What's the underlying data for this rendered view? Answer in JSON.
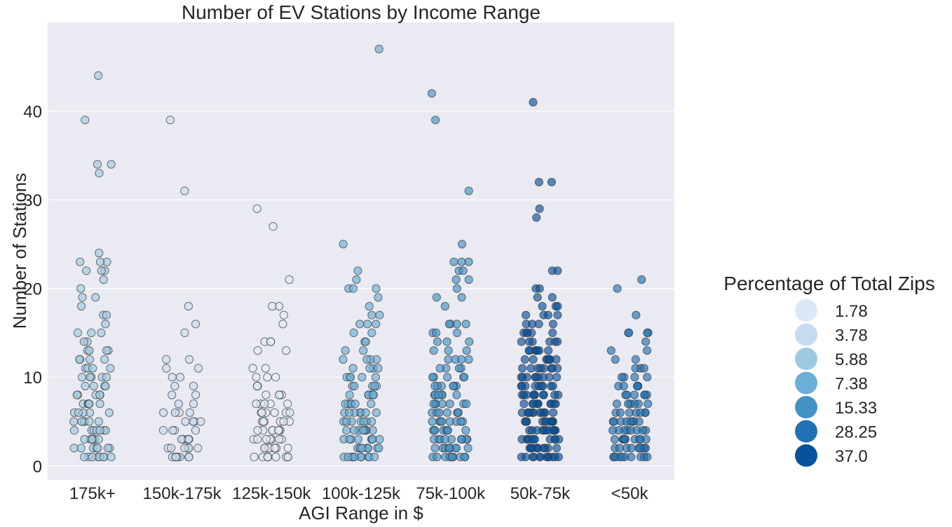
{
  "chart_data": {
    "type": "scatter",
    "title": "Number of EV Stations by Income Range",
    "xlabel": "AGI Range in $",
    "ylabel": "Number of Stations",
    "categories": [
      "175k+",
      "150k-175k",
      "125k-150k",
      "100k-125k",
      "75k-100k",
      "50k-75k",
      "<50k"
    ],
    "ylim": [
      -1.6,
      50
    ],
    "yticks": [
      0,
      10,
      20,
      30,
      40
    ],
    "grid": true,
    "legend": {
      "title": "Percentage of Total Zips",
      "placement": "right",
      "entries": [
        "1.78",
        "3.78",
        "5.88",
        "7.38",
        "15.33",
        "28.25",
        "37.0"
      ],
      "colors": [
        "#dbe9f6",
        "#c6dbef",
        "#9ecae1",
        "#6baed6",
        "#4292c6",
        "#2171b5",
        "#08519c"
      ]
    },
    "series": [
      {
        "category": "175k+",
        "percentage": "5.88",
        "color": "#9ecae1",
        "values": [
          44,
          39,
          34,
          34,
          33,
          24,
          23,
          23,
          23,
          22,
          22,
          22,
          21,
          20,
          19,
          19,
          18,
          17,
          17,
          16,
          15,
          15,
          15,
          14,
          14,
          13,
          13,
          13,
          13,
          12,
          12,
          12,
          12,
          11,
          11,
          11,
          11,
          10,
          10,
          10,
          10,
          10,
          9,
          9,
          9,
          9,
          8,
          8,
          8,
          8,
          8,
          7,
          7,
          7,
          7,
          7,
          7,
          6,
          6,
          6,
          6,
          6,
          5,
          5,
          5,
          5,
          5,
          5,
          4,
          4,
          4,
          4,
          4,
          4,
          4,
          3,
          3,
          3,
          3,
          3,
          3,
          2,
          2,
          2,
          2,
          2,
          2,
          2,
          1,
          1,
          1,
          1,
          1,
          1,
          1,
          1
        ]
      },
      {
        "category": "150k-175k",
        "percentage": "3.78",
        "color": "#c6dbef",
        "values": [
          39,
          31,
          18,
          16,
          15,
          12,
          12,
          11,
          11,
          10,
          10,
          9,
          9,
          8,
          8,
          7,
          7,
          6,
          6,
          6,
          6,
          5,
          5,
          5,
          5,
          4,
          4,
          4,
          4,
          3,
          3,
          3,
          3,
          3,
          2,
          2,
          2,
          2,
          2,
          2,
          1,
          1,
          1,
          1,
          1,
          1,
          1,
          1
        ]
      },
      {
        "category": "125k-150k",
        "percentage": "1.78",
        "color": "#dbe9f6",
        "values": [
          29,
          27,
          21,
          18,
          18,
          17,
          16,
          14,
          14,
          14,
          13,
          13,
          11,
          11,
          10,
          10,
          10,
          9,
          9,
          9,
          8,
          8,
          8,
          8,
          7,
          7,
          7,
          7,
          7,
          6,
          6,
          6,
          6,
          6,
          6,
          5,
          5,
          5,
          5,
          5,
          5,
          4,
          4,
          4,
          4,
          4,
          4,
          4,
          3,
          3,
          3,
          3,
          3,
          3,
          3,
          2,
          2,
          2,
          2,
          2,
          2,
          2,
          2,
          1,
          1,
          1,
          1,
          1,
          1,
          1,
          1,
          1
        ]
      },
      {
        "category": "100k-125k",
        "percentage": "7.38",
        "color": "#6baed6",
        "values": [
          47,
          25,
          22,
          21,
          20,
          20,
          20,
          19,
          18,
          17,
          17,
          16,
          16,
          16,
          15,
          15,
          14,
          14,
          13,
          13,
          12,
          12,
          12,
          12,
          11,
          11,
          11,
          11,
          10,
          10,
          10,
          10,
          10,
          9,
          9,
          9,
          9,
          9,
          8,
          8,
          8,
          8,
          8,
          8,
          7,
          7,
          7,
          7,
          7,
          7,
          6,
          6,
          6,
          6,
          6,
          6,
          6,
          5,
          5,
          5,
          5,
          5,
          5,
          5,
          4,
          4,
          4,
          4,
          4,
          4,
          4,
          4,
          3,
          3,
          3,
          3,
          3,
          3,
          3,
          3,
          2,
          2,
          2,
          2,
          2,
          2,
          2,
          2,
          2,
          1,
          1,
          1,
          1,
          1,
          1,
          1,
          1,
          1,
          1
        ]
      },
      {
        "category": "75k-100k",
        "percentage": "15.33",
        "color": "#4292c6",
        "values": [
          42,
          39,
          31,
          25,
          23,
          23,
          23,
          22,
          22,
          21,
          21,
          20,
          19,
          19,
          18,
          16,
          16,
          16,
          16,
          15,
          15,
          15,
          14,
          14,
          14,
          13,
          13,
          13,
          12,
          12,
          12,
          12,
          11,
          11,
          11,
          11,
          10,
          10,
          10,
          10,
          10,
          9,
          9,
          9,
          9,
          9,
          9,
          8,
          8,
          8,
          8,
          8,
          8,
          7,
          7,
          7,
          7,
          7,
          7,
          7,
          6,
          6,
          6,
          6,
          6,
          6,
          6,
          5,
          5,
          5,
          5,
          5,
          5,
          5,
          5,
          4,
          4,
          4,
          4,
          4,
          4,
          4,
          4,
          3,
          3,
          3,
          3,
          3,
          3,
          3,
          3,
          3,
          2,
          2,
          2,
          2,
          2,
          2,
          2,
          2,
          2,
          1,
          1,
          1,
          1,
          1,
          1,
          1,
          1,
          1,
          1
        ]
      },
      {
        "category": "50k-75k",
        "percentage": "37.0",
        "color": "#08519c",
        "values": [
          41,
          32,
          32,
          29,
          28,
          22,
          22,
          20,
          20,
          19,
          19,
          18,
          18,
          18,
          17,
          17,
          17,
          17,
          16,
          16,
          16,
          16,
          15,
          15,
          15,
          15,
          15,
          14,
          14,
          14,
          14,
          14,
          14,
          13,
          13,
          13,
          13,
          13,
          13,
          13,
          12,
          12,
          12,
          12,
          12,
          12,
          12,
          12,
          11,
          11,
          11,
          11,
          11,
          11,
          11,
          11,
          10,
          10,
          10,
          10,
          10,
          10,
          10,
          10,
          10,
          9,
          9,
          9,
          9,
          9,
          9,
          9,
          9,
          9,
          8,
          8,
          8,
          8,
          8,
          8,
          8,
          8,
          8,
          8,
          7,
          7,
          7,
          7,
          7,
          7,
          7,
          7,
          7,
          7,
          6,
          6,
          6,
          6,
          6,
          6,
          6,
          6,
          6,
          6,
          6,
          5,
          5,
          5,
          5,
          5,
          5,
          5,
          5,
          5,
          5,
          5,
          4,
          4,
          4,
          4,
          4,
          4,
          4,
          4,
          4,
          4,
          4,
          3,
          3,
          3,
          3,
          3,
          3,
          3,
          3,
          3,
          3,
          3,
          2,
          2,
          2,
          2,
          2,
          2,
          2,
          2,
          2,
          2,
          2,
          1,
          1,
          1,
          1,
          1,
          1,
          1,
          1,
          1,
          1,
          1,
          1
        ]
      },
      {
        "category": "<50k",
        "percentage": "28.25",
        "color": "#2171b5",
        "values": [
          21,
          20,
          17,
          15,
          15,
          15,
          15,
          14,
          13,
          13,
          12,
          12,
          11,
          11,
          11,
          10,
          10,
          10,
          10,
          9,
          9,
          9,
          9,
          9,
          8,
          8,
          8,
          8,
          8,
          8,
          7,
          7,
          7,
          7,
          7,
          7,
          6,
          6,
          6,
          6,
          6,
          6,
          6,
          5,
          5,
          5,
          5,
          5,
          5,
          5,
          5,
          4,
          4,
          4,
          4,
          4,
          4,
          4,
          4,
          3,
          3,
          3,
          3,
          3,
          3,
          3,
          3,
          3,
          2,
          2,
          2,
          2,
          2,
          2,
          2,
          2,
          2,
          1,
          1,
          1,
          1,
          1,
          1,
          1,
          1,
          1,
          1
        ]
      }
    ]
  }
}
